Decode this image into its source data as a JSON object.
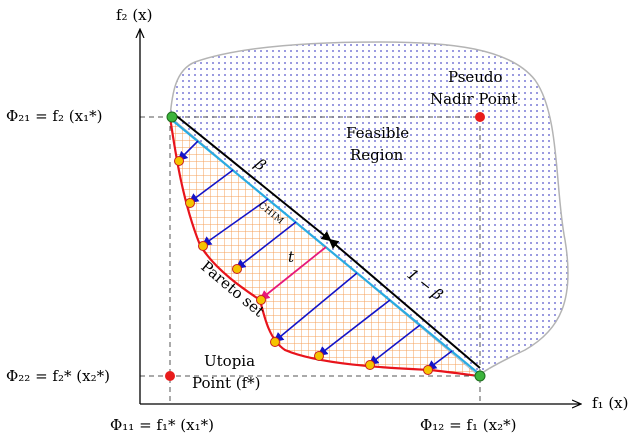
{
  "axes": {
    "y_label": "f₂ (x)",
    "x_label": "f₁ (x)"
  },
  "left_labels": {
    "phi21": "Φ₂₁ = f₂ (x₁*)",
    "phi22": "Φ₂₂ = f₂* (x₂*)"
  },
  "bottom_labels": {
    "phi11": "Φ₁₁ = f₁* (x₁*)",
    "phi12": "Φ₁₂ = f₁ (x₂*)"
  },
  "region": {
    "line1": "Feasible",
    "line2": "Region"
  },
  "nadir": {
    "line1": "Pseudo",
    "line2": "Nadir Point"
  },
  "utopia": {
    "line1": "Utopia",
    "line2": "Point (f*)"
  },
  "pareto_label": "Pareto set",
  "beta": "β",
  "one_minus_beta": "1 − β",
  "t": "t",
  "chim": "CHIM",
  "colors": {
    "feasible_dots": "#7b7bd6",
    "pareto_curve": "#e8141c",
    "hatch": "#f5a05a",
    "chim_line": "#29abe2",
    "normal_arrows": "#1414c8",
    "t_arrow": "#e6197a",
    "anchor_points": "#3cb43c",
    "pareto_points": "#f5c400",
    "red_points": "#e81c1c",
    "boundary": "#b4b4b4"
  }
}
